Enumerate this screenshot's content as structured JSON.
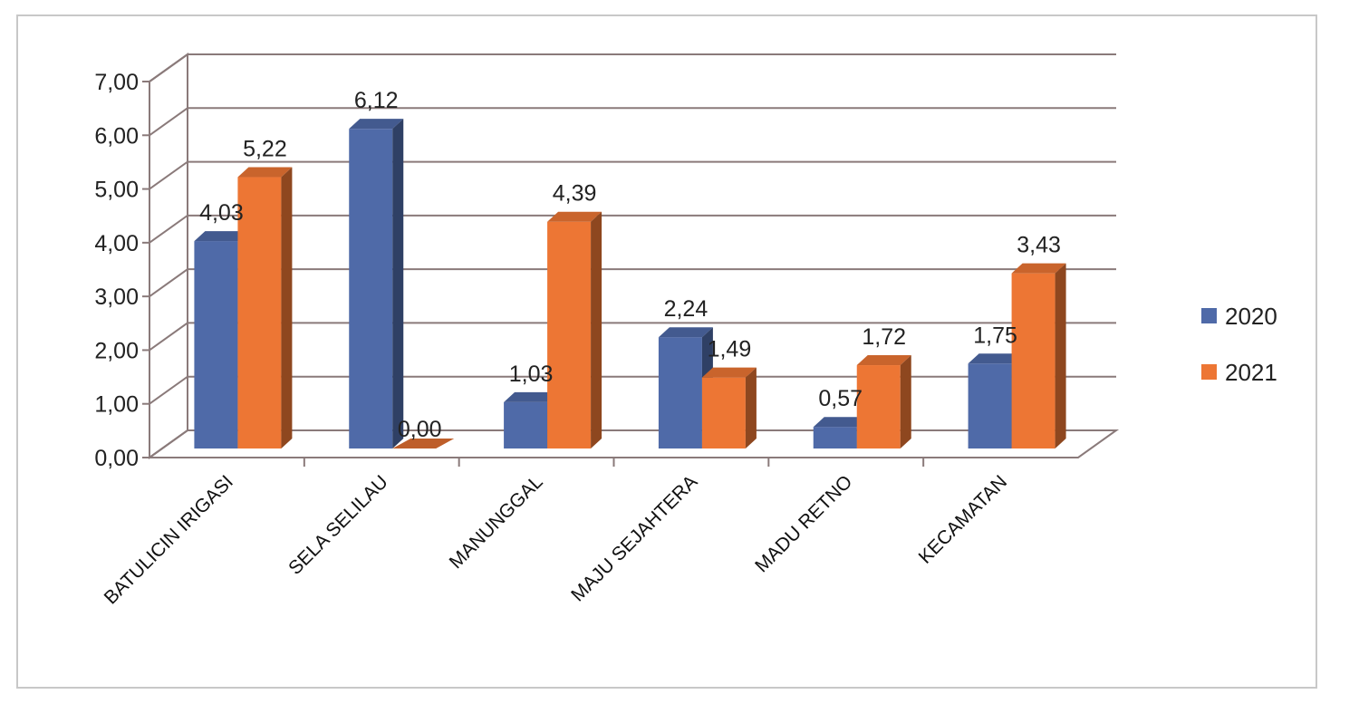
{
  "chart_data": {
    "type": "bar",
    "title": "",
    "xlabel": "",
    "ylabel": "",
    "ylim": [
      0,
      7
    ],
    "yticks": [
      "0,00",
      "1,00",
      "2,00",
      "3,00",
      "4,00",
      "5,00",
      "6,00",
      "7,00"
    ],
    "categories": [
      "BATULICIN IRIGASI",
      "SELA SELILAU",
      "MANUNGGAL",
      "MAJU SEJAHTERA",
      "MADU RETNO",
      "KECAMATAN"
    ],
    "series": [
      {
        "name": "2020",
        "color": "#4f6aa8",
        "values": [
          4.03,
          6.12,
          1.03,
          2.24,
          0.57,
          1.75
        ],
        "labels": [
          "4,03",
          "6,12",
          "1,03",
          "2,24",
          "0,57",
          "1,75"
        ]
      },
      {
        "name": "2021",
        "color": "#ed7634",
        "values": [
          5.22,
          0.0,
          4.39,
          1.49,
          1.72,
          3.43
        ],
        "labels": [
          "5,22",
          "0,00",
          "4,39",
          "1,49",
          "1,72",
          "3,43"
        ]
      }
    ],
    "grid": true,
    "legend_position": "right"
  }
}
